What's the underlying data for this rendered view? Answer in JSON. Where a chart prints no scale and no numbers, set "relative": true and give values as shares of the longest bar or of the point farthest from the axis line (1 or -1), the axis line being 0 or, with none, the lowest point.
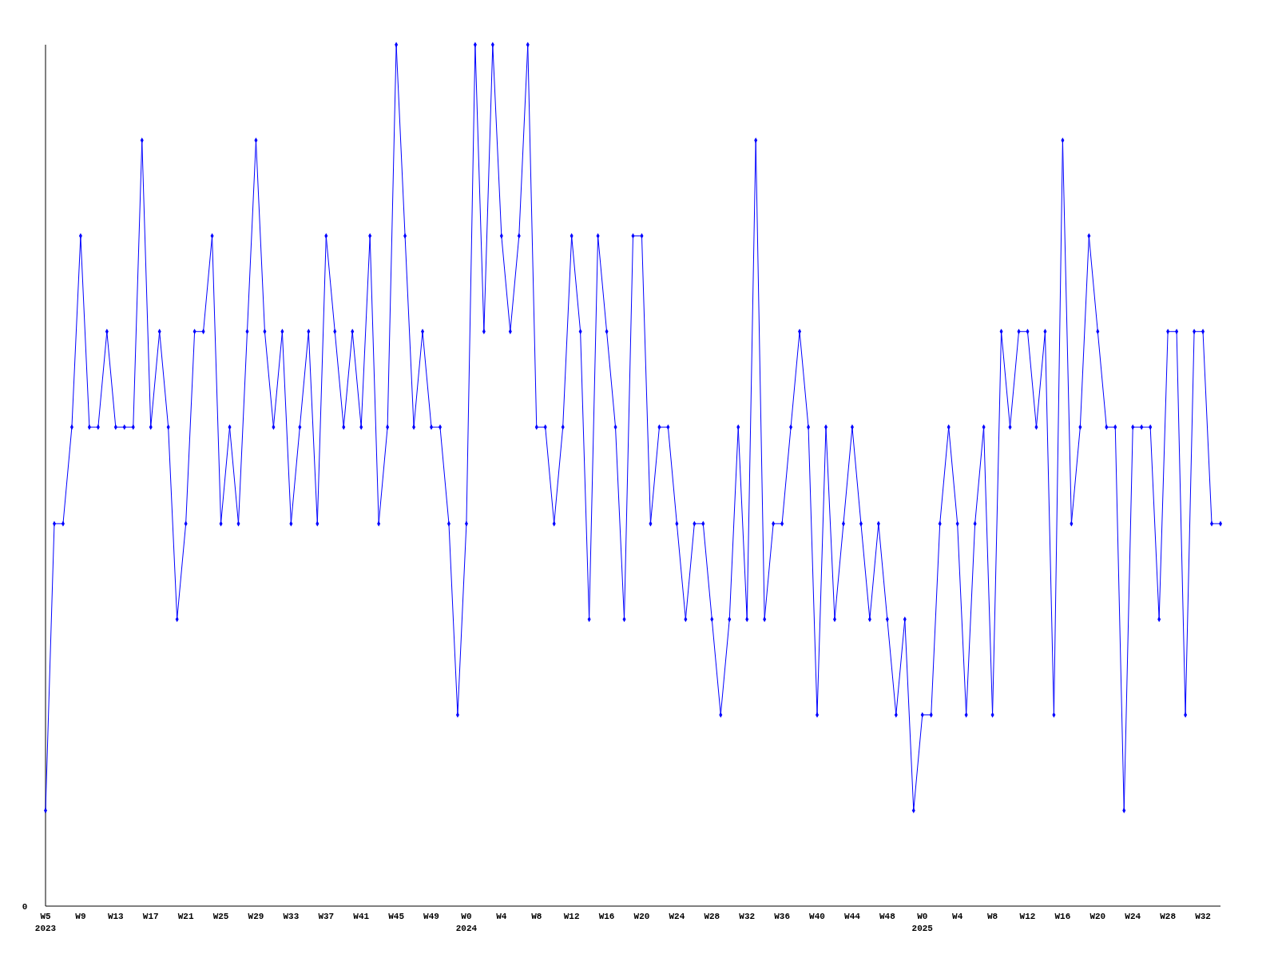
{
  "chart_data": {
    "type": "line",
    "relative": true,
    "marker": "diamond",
    "line_style": "solid",
    "grid": false,
    "annotations": [
      "0"
    ],
    "categories": [
      "W5\n2023",
      null,
      null,
      null,
      "W9",
      null,
      null,
      null,
      "W13",
      null,
      null,
      null,
      "W17",
      null,
      null,
      null,
      "W21",
      null,
      null,
      null,
      "W25",
      null,
      null,
      null,
      "W29",
      null,
      null,
      null,
      "W33",
      null,
      null,
      null,
      "W37",
      null,
      null,
      null,
      "W41",
      null,
      null,
      null,
      "W45",
      null,
      null,
      null,
      "W49",
      null,
      null,
      null,
      "W0\n2024",
      null,
      null,
      null,
      "W4",
      null,
      null,
      null,
      "W8",
      null,
      null,
      null,
      "W12",
      null,
      null,
      null,
      "W16",
      null,
      null,
      null,
      "W20",
      null,
      null,
      null,
      "W24",
      null,
      null,
      null,
      "W28",
      null,
      null,
      null,
      "W32",
      null,
      null,
      null,
      "W36",
      null,
      null,
      null,
      "W40",
      null,
      null,
      null,
      "W44",
      null,
      null,
      null,
      "W48",
      null,
      null,
      null,
      "W0\n2025",
      null,
      null,
      null,
      "W4",
      null,
      null,
      null,
      "W8",
      null,
      null,
      null,
      "W12",
      null,
      null,
      null,
      "W16",
      null,
      null,
      null,
      "W20",
      null,
      null,
      null,
      "W24",
      null,
      null,
      null,
      "W28",
      null,
      null,
      null,
      "W32",
      null,
      null
    ],
    "series": [
      {
        "color": "#0000ff",
        "values": [
          0.111,
          0.444,
          0.444,
          0.556,
          0.778,
          0.556,
          0.556,
          0.667,
          0.556,
          0.556,
          0.556,
          0.889,
          0.556,
          0.667,
          0.556,
          0.333,
          0.444,
          0.667,
          0.667,
          0.778,
          0.444,
          0.556,
          0.444,
          0.667,
          0.889,
          0.667,
          0.556,
          0.667,
          0.444,
          0.556,
          0.667,
          0.444,
          0.778,
          0.667,
          0.556,
          0.667,
          0.556,
          0.778,
          0.444,
          0.556,
          1,
          0.778,
          0.556,
          0.667,
          0.556,
          0.556,
          0.444,
          0.222,
          0.444,
          1,
          0.667,
          1,
          0.778,
          0.667,
          0.778,
          1,
          0.556,
          0.556,
          0.444,
          0.556,
          0.778,
          0.667,
          0.333,
          0.778,
          0.667,
          0.556,
          0.333,
          0.778,
          0.778,
          0.444,
          0.556,
          0.556,
          0.444,
          0.333,
          0.444,
          0.444,
          0.333,
          0.222,
          0.333,
          0.556,
          0.333,
          0.889,
          0.333,
          0.444,
          0.444,
          0.556,
          0.667,
          0.556,
          0.222,
          0.556,
          0.333,
          0.444,
          0.556,
          0.444,
          0.333,
          0.444,
          0.333,
          0.222,
          0.333,
          0.111,
          0.222,
          0.222,
          0.444,
          0.556,
          0.444,
          0.222,
          0.444,
          0.556,
          0.222,
          0.667,
          0.556,
          0.667,
          0.667,
          0.556,
          0.667,
          0.222,
          0.889,
          0.444,
          0.556,
          0.778,
          0.667,
          0.556,
          0.556,
          0.111,
          0.556,
          0.556,
          0.556,
          0.333,
          0.667,
          0.667,
          0.222,
          0.667,
          0.667,
          0.444,
          0.444
        ]
      }
    ]
  }
}
